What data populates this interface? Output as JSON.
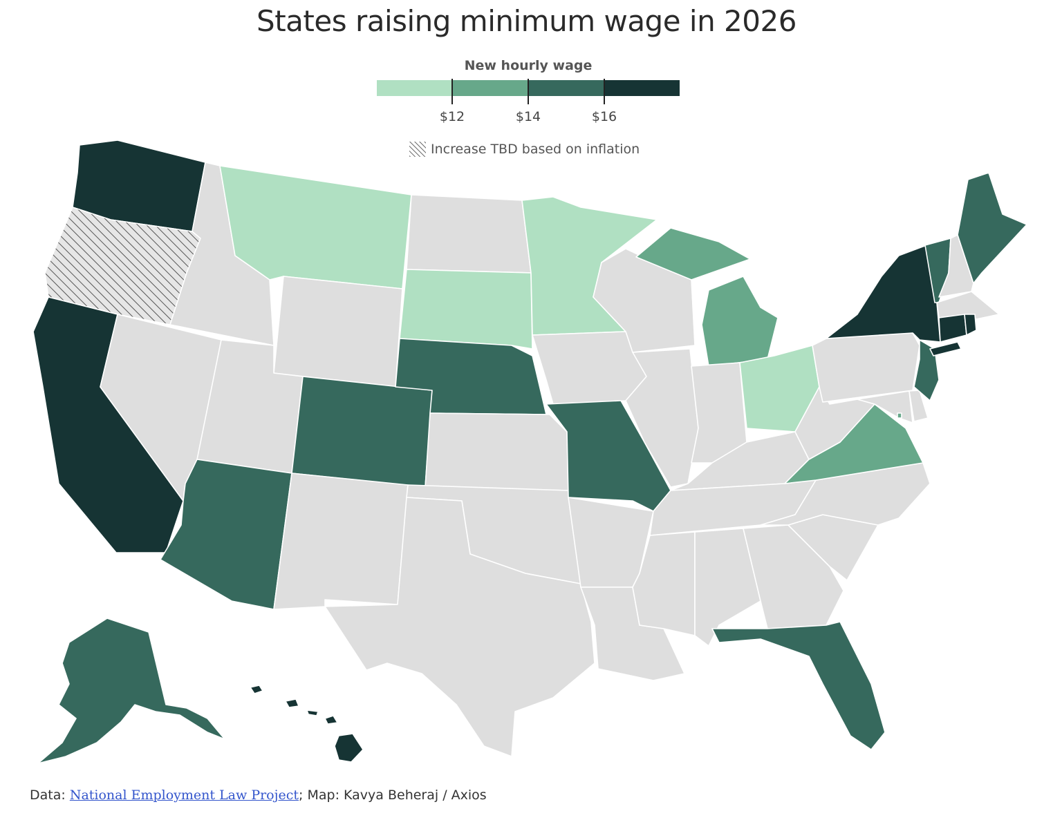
{
  "title": "States raising minimum wage in 2026",
  "legend": {
    "title": "New hourly wage",
    "bins": [
      {
        "label": "$12",
        "color": "#b0e0c2"
      },
      {
        "label": "$14",
        "color": "#67a88a"
      },
      {
        "label": "$16",
        "color": "#36695d"
      },
      {
        "label": "",
        "color": "#163434"
      }
    ],
    "tbd_label": "Increase TBD based on inflation"
  },
  "colors": {
    "no_change": "#dedede",
    "tier1": "#b0e0c2",
    "tier2": "#67a88a",
    "tier3": "#36695d",
    "tier4": "#163434",
    "hatch": "#555555"
  },
  "states": {
    "WA": "tier4",
    "OR": "tbd",
    "CA": "tier4",
    "NV": "none",
    "ID": "none",
    "MT": "tier1",
    "WY": "none",
    "UT": "none",
    "AZ": "tier3",
    "CO": "tier3",
    "NM": "none",
    "ND": "none",
    "SD": "tier1",
    "NE": "tier3",
    "KS": "none",
    "OK": "none",
    "TX": "none",
    "MN": "tier1",
    "IA": "none",
    "MO": "tier3",
    "AR": "none",
    "LA": "none",
    "WI": "none",
    "IL": "none",
    "MI": "tier2",
    "IN": "none",
    "OH": "tier1",
    "KY": "none",
    "TN": "none",
    "MS": "none",
    "AL": "none",
    "GA": "none",
    "FL": "tier3",
    "SC": "none",
    "NC": "none",
    "VA": "tier2",
    "WV": "none",
    "MD": "none",
    "DE": "none",
    "PA": "none",
    "NJ": "tier3",
    "NY": "tier4",
    "CT": "tier4",
    "RI": "tier4",
    "MA": "none",
    "VT": "tier3",
    "NH": "none",
    "ME": "tier3",
    "DC": "tier2",
    "AK": "tier3",
    "HI": "tier4"
  },
  "footer": {
    "data_prefix": "Data: ",
    "source_link": "National Employment Law Project",
    "map_credit": "; Map: Kavya Beheraj / Axios"
  }
}
